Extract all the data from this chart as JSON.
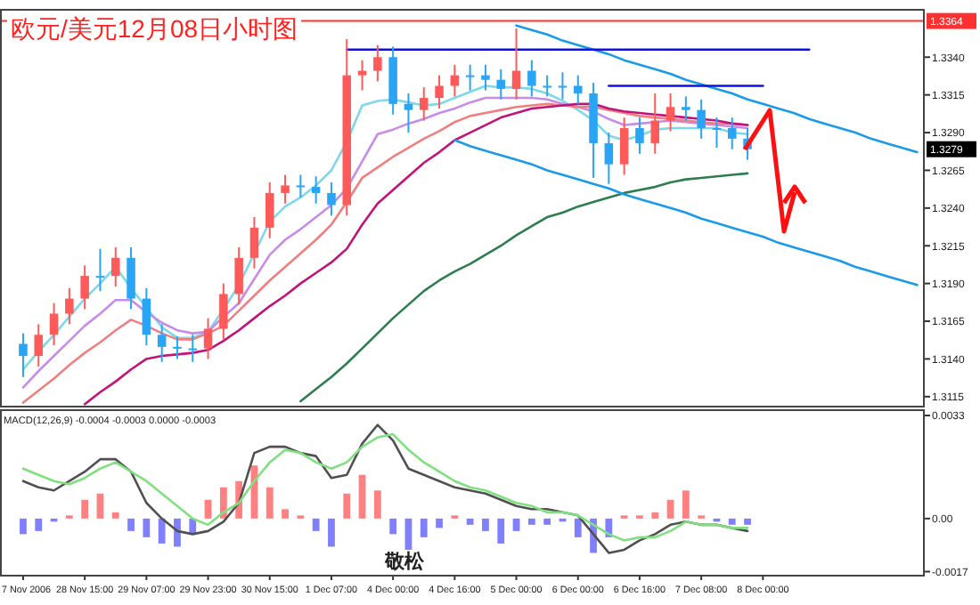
{
  "chart_data": [
    {
      "type": "candlestick",
      "title": "欧元/美元12月08日小时图",
      "categories": [
        null,
        null,
        null,
        null,
        null,
        null,
        null,
        null,
        null,
        null,
        null,
        null,
        null,
        null,
        null,
        null,
        null,
        null,
        null,
        null,
        null,
        null,
        null,
        null,
        null,
        null,
        null,
        null,
        null,
        null,
        null,
        null,
        null,
        null,
        null,
        null,
        null,
        null,
        null,
        null,
        null,
        null,
        null,
        null,
        null,
        null,
        null,
        null,
        null,
        null,
        null,
        null,
        null,
        null,
        null,
        null,
        null,
        null,
        null,
        null
      ],
      "ohlc": [
        null,
        [
          1.315,
          1.3157,
          1.3128,
          1.3142
        ],
        [
          1.3142,
          1.3163,
          1.3135,
          1.3156
        ],
        [
          1.3156,
          1.3177,
          1.3149,
          1.317
        ],
        [
          1.317,
          1.3187,
          1.3163,
          1.318
        ],
        [
          1.318,
          1.3202,
          1.3173,
          1.3195
        ],
        [
          1.3195,
          1.3213,
          1.3185,
          1.3195
        ],
        [
          1.3195,
          1.3214,
          1.3188,
          1.3207
        ],
        [
          1.3207,
          1.3214,
          1.3173,
          1.318
        ],
        [
          1.318,
          1.3187,
          1.3149,
          1.3156
        ],
        [
          1.3156,
          1.3163,
          1.3138,
          1.3148
        ],
        [
          1.3148,
          1.3155,
          1.314,
          1.3147
        ],
        [
          1.3147,
          1.3156,
          1.3138,
          1.3147
        ],
        [
          1.3147,
          1.3167,
          1.314,
          1.316
        ],
        [
          1.316,
          1.319,
          1.3153,
          1.3183
        ],
        [
          1.3183,
          1.3214,
          1.3176,
          1.3207
        ],
        [
          1.3207,
          1.3234,
          1.32,
          1.3227
        ],
        [
          1.3227,
          1.3257,
          1.322,
          1.325
        ],
        [
          1.325,
          1.3262,
          1.3243,
          1.3255
        ],
        [
          1.3255,
          1.3262,
          1.3247,
          1.3254
        ],
        [
          1.3254,
          1.3261,
          1.3243,
          1.325
        ],
        [
          1.325,
          1.3257,
          1.3235,
          1.3242
        ],
        [
          1.3242,
          1.3352,
          1.3235,
          1.3328
        ],
        [
          1.3328,
          1.3338,
          1.3318,
          1.3331
        ],
        [
          1.3331,
          1.3348,
          1.3324,
          1.334
        ],
        [
          1.334,
          1.3347,
          1.3302,
          1.3309
        ],
        [
          1.3309,
          1.3316,
          1.329,
          1.3305
        ],
        [
          1.3305,
          1.332,
          1.3298,
          1.3313
        ],
        [
          1.3313,
          1.3328,
          1.3306,
          1.3321
        ],
        [
          1.3321,
          1.3335,
          1.3314,
          1.3328
        ],
        [
          1.3328,
          1.3335,
          1.3318,
          1.3328
        ],
        [
          1.3328,
          1.3335,
          1.3318,
          1.3325
        ],
        [
          1.3325,
          1.3332,
          1.3312,
          1.3319
        ],
        [
          1.3319,
          1.3359,
          1.3312,
          1.3331
        ],
        [
          1.3331,
          1.3338,
          1.3314,
          1.3321
        ],
        [
          1.3321,
          1.3328,
          1.3314,
          1.3321
        ],
        [
          1.3321,
          1.333,
          1.3312,
          1.3321
        ],
        [
          1.3321,
          1.3328,
          1.3309,
          1.3316
        ],
        [
          1.3316,
          1.3323,
          1.326,
          1.3283
        ],
        [
          1.3283,
          1.329,
          1.3256,
          1.3269
        ],
        [
          1.3269,
          1.33,
          1.3262,
          1.3293
        ],
        [
          1.3293,
          1.33,
          1.3276,
          1.3283
        ],
        [
          1.3283,
          1.3316,
          1.3276,
          1.3298
        ],
        [
          1.3298,
          1.3316,
          1.3291,
          1.3307
        ],
        [
          1.3307,
          1.3314,
          1.3298,
          1.3305
        ],
        [
          1.3305,
          1.3312,
          1.3286,
          1.3293
        ],
        [
          1.3293,
          1.33,
          1.328,
          1.3293
        ],
        [
          1.3293,
          1.33,
          1.3279,
          1.3286
        ],
        [
          1.3286,
          1.3293,
          1.3272,
          1.3279
        ],
        null,
        null,
        null,
        null,
        null,
        null,
        null,
        null,
        null,
        null,
        null
      ],
      "colors": [
        null,
        "#2aa4f4",
        "#ff5a5a",
        "#ff5a5a",
        "#ff5a5a",
        "#ff5a5a",
        "#2aa4f4",
        "#ff5a5a",
        "#2aa4f4",
        "#2aa4f4",
        "#2aa4f4",
        "#2aa4f4",
        "#2aa4f4",
        "#ff5a5a",
        "#ff5a5a",
        "#ff5a5a",
        "#ff5a5a",
        "#ff5a5a",
        "#ff5a5a",
        "#2aa4f4",
        "#2aa4f4",
        "#2aa4f4",
        "#ff5a5a",
        "#ff5a5a",
        "#ff5a5a",
        "#2aa4f4",
        "#2aa4f4",
        "#ff5a5a",
        "#ff5a5a",
        "#ff5a5a",
        "#2aa4f4",
        "#2aa4f4",
        "#2aa4f4",
        "#ff5a5a",
        "#2aa4f4",
        "#2aa4f4",
        "#2aa4f4",
        "#2aa4f4",
        "#2aa4f4",
        "#2aa4f4",
        "#ff5a5a",
        "#2aa4f4",
        "#ff5a5a",
        "#ff5a5a",
        "#2aa4f4",
        "#2aa4f4",
        "#2aa4f4",
        "#2aa4f4",
        "#2aa4f4",
        null,
        null,
        null,
        null,
        null,
        null,
        null,
        null,
        null,
        null,
        null
      ],
      "series": [
        {
          "type": "line",
          "color": "#7fd8e8",
          "values": [
            null,
            1.3133,
            1.3145,
            1.3156,
            1.3168,
            1.318,
            1.319,
            1.3201,
            1.3187,
            1.3174,
            1.3161,
            1.3154,
            1.3154,
            1.3158,
            1.3173,
            1.3189,
            1.321,
            1.3231,
            1.3241,
            1.3247,
            1.3255,
            1.3265,
            1.3284,
            1.3308,
            1.3311,
            1.3312,
            1.331,
            1.3308,
            1.3309,
            1.3313,
            1.3317,
            1.3321,
            1.332,
            1.332,
            1.3319,
            1.3316,
            1.3311,
            1.3305,
            1.3298,
            1.3288,
            1.3285,
            1.3288,
            1.3292,
            1.3293,
            1.3293,
            1.3293,
            1.3293,
            1.329,
            1.3289,
            null,
            null,
            null,
            null,
            null,
            null,
            null,
            null,
            null,
            null,
            null
          ]
        },
        {
          "type": "line",
          "color": "#c88ce8",
          "values": [
            null,
            1.3121,
            1.3132,
            1.3142,
            1.3152,
            1.3162,
            1.317,
            1.3179,
            1.3179,
            1.3171,
            1.3164,
            1.3159,
            1.3157,
            1.3158,
            1.3168,
            1.3177,
            1.3193,
            1.3209,
            1.3219,
            1.3226,
            1.3234,
            1.3242,
            1.3253,
            1.3271,
            1.3289,
            1.3292,
            1.3296,
            1.3299,
            1.3303,
            1.3306,
            1.331,
            1.3313,
            1.3313,
            1.3313,
            1.3313,
            1.3312,
            1.3309,
            1.3307,
            1.3304,
            1.3299,
            1.3295,
            1.3296,
            1.3297,
            1.3298,
            1.3297,
            1.3296,
            1.3295,
            1.3294,
            1.3293,
            null,
            null,
            null,
            null,
            null,
            null,
            null,
            null,
            null,
            null,
            null
          ]
        },
        {
          "type": "line",
          "color": "#f08080",
          "values": [
            null,
            1.3111,
            1.3119,
            1.3127,
            1.3136,
            1.3144,
            1.3151,
            1.3159,
            1.3166,
            1.3162,
            1.3157,
            1.3153,
            1.3153,
            1.3157,
            1.3162,
            1.3172,
            1.3182,
            1.3192,
            1.3201,
            1.321,
            1.3219,
            1.3229,
            1.3244,
            1.326,
            1.3267,
            1.3274,
            1.328,
            1.3286,
            1.3291,
            1.3297,
            1.3301,
            1.3303,
            1.3305,
            1.3307,
            1.3308,
            1.3309,
            1.3308,
            1.3307,
            1.3307,
            1.3305,
            1.3303,
            1.3301,
            1.33,
            1.3299,
            1.3298,
            1.3297,
            1.3296,
            1.3296,
            1.3295,
            null,
            null,
            null,
            null,
            null,
            null,
            null,
            null,
            null,
            null,
            null
          ]
        },
        {
          "type": "line",
          "color": "#c0147a",
          "values": [
            null,
            null,
            null,
            null,
            null,
            1.311,
            1.3118,
            1.3125,
            1.3133,
            1.314,
            1.3142,
            1.3143,
            1.3144,
            1.3146,
            1.3152,
            1.3159,
            1.3167,
            1.3175,
            1.3182,
            1.319,
            1.3197,
            1.3204,
            1.3213,
            1.3229,
            1.3243,
            1.3252,
            1.3261,
            1.327,
            1.3277,
            1.3285,
            1.329,
            1.3295,
            1.33,
            1.3303,
            1.3306,
            1.3307,
            1.3308,
            1.3309,
            1.3309,
            1.3306,
            1.3304,
            1.3303,
            1.3302,
            1.3301,
            1.33,
            1.3299,
            1.3298,
            1.3296,
            1.3295,
            null,
            null,
            null,
            null,
            null,
            null,
            null,
            null,
            null,
            null,
            null
          ]
        },
        {
          "type": "line",
          "color": "#2e7d4f",
          "values": [
            null,
            null,
            null,
            null,
            null,
            null,
            null,
            null,
            null,
            null,
            null,
            null,
            null,
            null,
            null,
            null,
            null,
            null,
            null,
            1.3112,
            1.312,
            1.3128,
            1.3137,
            1.3147,
            1.3157,
            1.3167,
            1.3176,
            1.3185,
            1.3192,
            1.3198,
            1.3203,
            1.3209,
            1.3215,
            1.3222,
            1.3228,
            1.3234,
            1.3237,
            1.3241,
            1.3244,
            1.3247,
            1.325,
            1.3252,
            1.3254,
            1.3257,
            1.3259,
            1.326,
            1.3261,
            1.3262,
            1.3263,
            null,
            null,
            null,
            null,
            null,
            null,
            null,
            null,
            null,
            null,
            null
          ]
        },
        {
          "type": "line",
          "color": "#1a9be8",
          "values": [
            null,
            null,
            null,
            null,
            null,
            null,
            null,
            null,
            null,
            null,
            null,
            null,
            null,
            null,
            null,
            null,
            null,
            null,
            null,
            null,
            null,
            null,
            null,
            null,
            null,
            null,
            null,
            null,
            null,
            null,
            null,
            null,
            null,
            1.3361,
            1.3358,
            1.3355,
            1.3351,
            1.3348,
            1.3345,
            1.3342,
            1.3338,
            1.3335,
            1.3332,
            1.3329,
            1.3325,
            1.3322,
            1.3319,
            1.3316,
            1.3312,
            1.3309,
            1.3306,
            1.3303,
            1.3299,
            1.3296,
            1.3293,
            1.329,
            1.3286,
            1.3283,
            1.328,
            1.3277
          ]
        },
        {
          "type": "line",
          "color": "#1a9be8",
          "values": [
            null,
            null,
            null,
            null,
            null,
            null,
            null,
            null,
            null,
            null,
            null,
            null,
            null,
            null,
            null,
            null,
            null,
            null,
            null,
            null,
            null,
            null,
            null,
            null,
            null,
            null,
            null,
            null,
            null,
            1.3285,
            1.3281,
            1.3278,
            1.3275,
            1.3272,
            1.3269,
            1.3265,
            1.3262,
            1.3259,
            1.3256,
            1.3253,
            1.3249,
            1.3246,
            1.3243,
            1.324,
            1.3237,
            1.3233,
            1.323,
            1.3227,
            1.3224,
            1.3221,
            1.3217,
            1.3214,
            1.3211,
            1.3208,
            1.3205,
            1.3201,
            1.3198,
            1.3195,
            1.3192,
            1.3189
          ]
        },
        {
          "type": "line",
          "color": "#1010e0",
          "values": [
            null,
            null,
            null,
            null,
            null,
            null,
            null,
            null,
            null,
            null,
            null,
            null,
            null,
            null,
            null,
            null,
            null,
            null,
            null,
            null,
            null,
            null,
            1.3345,
            1.3345,
            1.3345,
            1.3345,
            1.3345,
            1.3345,
            1.3345,
            1.3345,
            1.3345,
            1.3345,
            1.3345,
            1.3345,
            1.3345,
            1.3345,
            1.3345,
            1.3345,
            1.3345,
            1.3345,
            1.3345,
            1.3345,
            1.3345,
            1.3345,
            1.3345,
            1.3345,
            1.3345,
            1.3345,
            1.3345,
            1.3345,
            1.3345,
            1.3345,
            1.3345,
            null,
            null,
            null,
            null,
            null,
            null,
            null
          ]
        },
        {
          "type": "line",
          "color": "#1010e0",
          "values": [
            null,
            null,
            null,
            null,
            null,
            null,
            null,
            null,
            null,
            null,
            null,
            null,
            null,
            null,
            null,
            null,
            null,
            null,
            null,
            null,
            null,
            null,
            null,
            null,
            null,
            null,
            null,
            null,
            null,
            null,
            null,
            null,
            null,
            null,
            null,
            null,
            null,
            null,
            null,
            1.3321,
            1.3321,
            1.3321,
            1.3321,
            1.3321,
            1.3321,
            1.3321,
            1.3321,
            1.3321,
            1.3321,
            1.3321,
            null,
            null,
            null,
            null,
            null,
            null,
            null,
            null,
            null,
            null
          ]
        }
      ],
      "ref_lines": [
        {
          "axis": "y",
          "value": 1.3364,
          "label": "1.3364",
          "color": "#ff3030"
        }
      ],
      "annotations": [
        "1.3279"
      ],
      "ylim": [
        1.3109,
        1.3372
      ],
      "yticks": [
        {
          "value": 1.3115,
          "label": "1.3115"
        },
        {
          "value": 1.314,
          "label": "1.3140"
        },
        {
          "value": 1.3165,
          "label": "1.3165"
        },
        {
          "value": 1.319,
          "label": "1.3190"
        },
        {
          "value": 1.3215,
          "label": "1.3215"
        },
        {
          "value": 1.324,
          "label": "1.3240"
        },
        {
          "value": 1.3265,
          "label": "1.3265"
        },
        {
          "value": 1.329,
          "label": "1.3290"
        },
        {
          "value": 1.3315,
          "label": "1.3315"
        },
        {
          "value": 1.334,
          "label": "1.3340"
        }
      ]
    },
    {
      "type": "bar",
      "categories": [
        null,
        "7 Nov 2006",
        null,
        null,
        null,
        "28 Nov 15:00",
        null,
        null,
        null,
        "29 Nov 07:00",
        null,
        null,
        null,
        "29 Nov 23:00",
        null,
        null,
        null,
        "30 Nov 15:00",
        null,
        null,
        null,
        "1 Dec 07:00",
        null,
        null,
        null,
        "4 Dec 00:00",
        null,
        null,
        null,
        "4 Dec 16:00",
        null,
        null,
        null,
        "5 Dec 00:00",
        null,
        null,
        null,
        "6 Dec 00:00",
        null,
        null,
        null,
        "6 Dec 16:00",
        null,
        null,
        null,
        "7 Dec 08:00",
        null,
        null,
        null,
        "8 Dec 00:00",
        null,
        null,
        null,
        null,
        null,
        null,
        null,
        null,
        null,
        null
      ],
      "series": [
        {
          "type": "bar",
          "values": [
            null,
            -0.0005,
            -0.0004,
            -0.0001,
            0.0001,
            0.0006,
            0.0008,
            0.0002,
            -0.0004,
            -0.0006,
            -0.0008,
            -0.0009,
            -0.0005,
            0.0006,
            0.001,
            0.0012,
            0.0017,
            0.001,
            0.0003,
            0.0001,
            -0.0004,
            -0.0009,
            0.0008,
            0.0014,
            0.0009,
            -0.0005,
            -0.001,
            -0.0006,
            -0.0003,
            0.0001,
            -0.0002,
            -0.0004,
            -0.0008,
            -0.0004,
            -0.0002,
            -0.0002,
            -0.0001,
            -0.0006,
            -0.0011,
            -0.0006,
            0.0001,
            0.0001,
            0.0002,
            0.0006,
            0.0009,
            0.0001,
            -0.0001,
            -0.0002,
            -0.0002,
            null,
            null,
            null,
            null,
            null,
            null,
            null,
            null,
            null,
            null,
            null
          ],
          "colors": [
            null,
            "#8080ff",
            "#8080ff",
            "#8080ff",
            "#ff8080",
            "#ff8080",
            "#ff8080",
            "#ff8080",
            "#8080ff",
            "#8080ff",
            "#8080ff",
            "#8080ff",
            "#8080ff",
            "#ff8080",
            "#ff8080",
            "#ff8080",
            "#ff8080",
            "#ff8080",
            "#ff8080",
            "#ff8080",
            "#8080ff",
            "#8080ff",
            "#ff8080",
            "#ff8080",
            "#ff8080",
            "#8080ff",
            "#8080ff",
            "#8080ff",
            "#8080ff",
            "#ff8080",
            "#8080ff",
            "#8080ff",
            "#8080ff",
            "#8080ff",
            "#8080ff",
            "#8080ff",
            "#8080ff",
            "#8080ff",
            "#8080ff",
            "#8080ff",
            "#ff8080",
            "#ff8080",
            "#ff8080",
            "#ff8080",
            "#ff8080",
            "#ff8080",
            "#8080ff",
            "#8080ff",
            "#8080ff",
            null,
            null,
            null,
            null,
            null,
            null,
            null,
            null,
            null,
            null,
            null
          ]
        },
        {
          "type": "line",
          "color": "#505050",
          "values": [
            null,
            0.0012,
            0.001,
            0.0009,
            0.0012,
            0.0015,
            0.0019,
            0.0019,
            0.0015,
            0.0005,
            0.0,
            -0.0004,
            -0.0005,
            -0.0004,
            -0.0001,
            0.0005,
            0.0021,
            0.0023,
            0.0023,
            0.0021,
            0.002,
            0.0013,
            0.0014,
            0.0024,
            0.003,
            0.0025,
            0.0016,
            0.0014,
            0.0012,
            0.001,
            0.0009,
            0.0008,
            0.0006,
            0.0004,
            0.0003,
            0.0003,
            0.0002,
            0.0001,
            -0.0005,
            -0.0011,
            -0.001,
            -0.0007,
            -0.0005,
            -0.0002,
            -0.0001,
            -0.0002,
            -0.0002,
            -0.0003,
            -0.0004,
            null,
            null,
            null,
            null,
            null,
            null,
            null,
            null,
            null,
            null,
            null
          ]
        },
        {
          "type": "line",
          "color": "#80e080",
          "values": [
            null,
            0.0016,
            0.0014,
            0.0012,
            0.0011,
            0.0013,
            0.0016,
            0.0018,
            0.0015,
            0.0012,
            0.0008,
            0.0004,
            0.0,
            -0.0002,
            0.0002,
            0.0005,
            0.0012,
            0.0018,
            0.0022,
            0.0021,
            0.0018,
            0.0016,
            0.0018,
            0.0023,
            0.0026,
            0.0027,
            0.0022,
            0.0018,
            0.0015,
            0.0012,
            0.001,
            0.0009,
            0.0007,
            0.0005,
            0.0004,
            0.0002,
            0.0002,
            0.0001,
            -0.0002,
            -0.0005,
            -0.0007,
            -0.0006,
            -0.0006,
            -0.0004,
            -0.0001,
            -0.0002,
            -0.0002,
            -0.0003,
            -0.0003,
            null,
            null,
            null,
            null,
            null,
            null,
            null,
            null,
            null,
            null,
            null
          ]
        }
      ],
      "annotations": [
        "MACD(12,26,9) -0.0004 -0.0003 0.0000 -0.0003",
        "敬松"
      ],
      "ylim": [
        -0.0018,
        0.0035
      ],
      "yticks": [
        {
          "value": 0.0033,
          "label": "0.0033"
        },
        {
          "value": 0,
          "label": "0.00"
        },
        {
          "value": -0.0017,
          "label": "-0.0017"
        }
      ]
    }
  ]
}
